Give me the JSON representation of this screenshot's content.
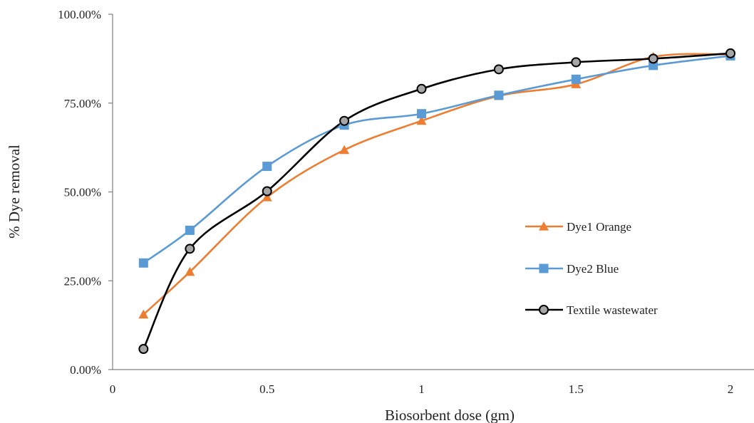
{
  "chart_data": {
    "type": "line",
    "title": "",
    "xlabel": "Biosorbent dose (gm)",
    "ylabel": "% Dye removal",
    "xlim": [
      0,
      2.0
    ],
    "ylim": [
      0,
      100
    ],
    "x_ticks": [
      0,
      0.5,
      1,
      1.5,
      2
    ],
    "x_tick_labels": [
      "0",
      "0.5",
      "1",
      "1.5",
      "2"
    ],
    "y_ticks": [
      0,
      25,
      50,
      75,
      100
    ],
    "y_tick_labels": [
      "0.00%",
      "25.00%",
      "50.00%",
      "75.00%",
      "100.00%"
    ],
    "grid": false,
    "smooth": true,
    "legend_position": "right",
    "x": [
      0.1,
      0.25,
      0.5,
      0.75,
      1.0,
      1.25,
      1.5,
      1.75,
      2.0
    ],
    "series": [
      {
        "name": "Dye1 Orange",
        "color": "#ED7D31",
        "marker": "triangle",
        "values": [
          15.5,
          27.5,
          48.5,
          61.8,
          70.0,
          77.0,
          80.3,
          88.0,
          88.7
        ]
      },
      {
        "name": "Dye2 Blue",
        "color": "#5B9BD5",
        "marker": "square",
        "values": [
          30.0,
          39.2,
          57.2,
          68.8,
          72.0,
          77.2,
          81.7,
          85.6,
          88.3
        ]
      },
      {
        "name": "Textile wastewater",
        "color": "#000000",
        "marker": "circle",
        "values": [
          5.8,
          34.0,
          50.2,
          70.0,
          79.0,
          84.5,
          86.5,
          87.5,
          89.0
        ]
      }
    ]
  }
}
